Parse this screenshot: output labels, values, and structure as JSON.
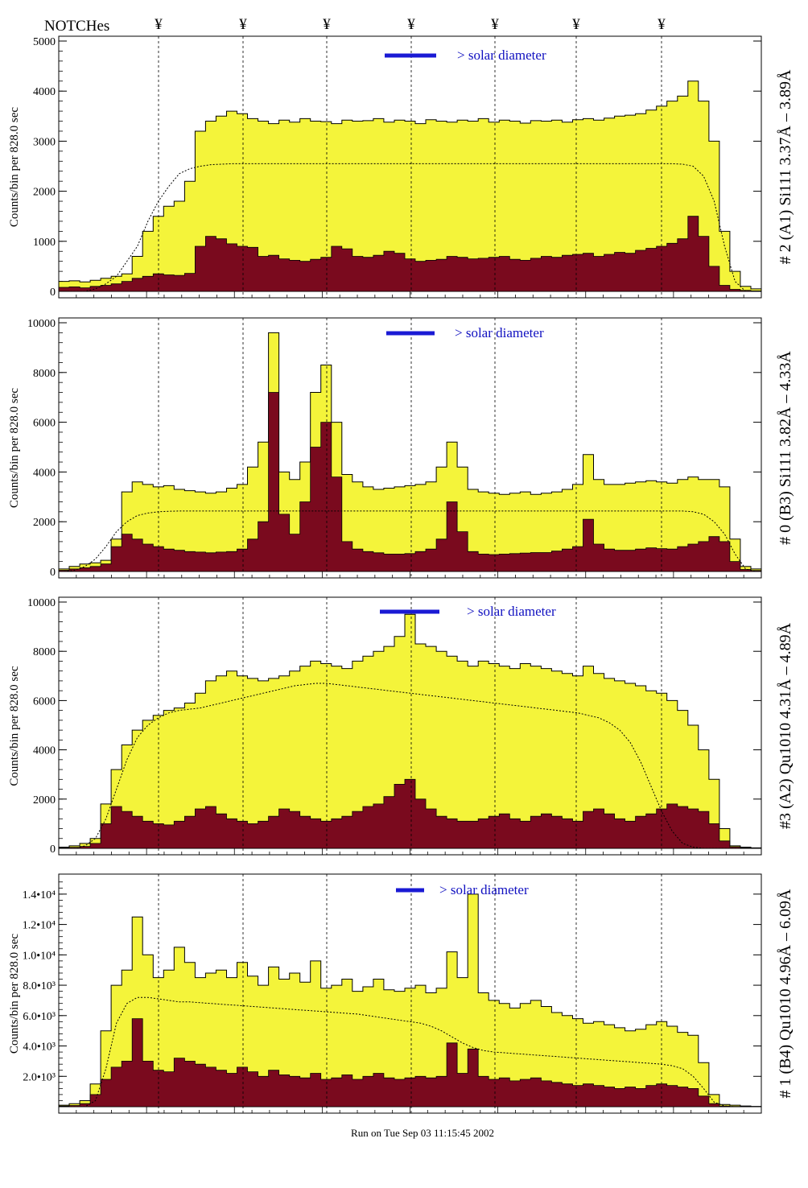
{
  "header": {
    "notches_label": "NOTCHes",
    "notch_marker": "¥"
  },
  "footer": {
    "run_text": "Run on Tue Sep 03 11:15:45 2002"
  },
  "colors": {
    "upper_fill": "#f4f43a",
    "lower_fill": "#7a0a1e",
    "legend": "#1a1ad4",
    "outline": "#000000"
  },
  "chart_data": [
    {
      "type": "area",
      "title": "# 2 (A1) Si111  3.37Å – 3.89Å",
      "ylabel": "Counts/bin per    828.0 sec",
      "legend": "> solar diameter",
      "ylim": [
        0,
        5000
      ],
      "yticks": [
        "0",
        "1000",
        "2000",
        "3000",
        "4000",
        "5000"
      ],
      "upper": [
        200,
        210,
        190,
        220,
        260,
        300,
        350,
        700,
        1200,
        1500,
        1700,
        1800,
        2200,
        3200,
        3400,
        3500,
        3600,
        3550,
        3450,
        3400,
        3350,
        3420,
        3380,
        3450,
        3400,
        3390,
        3350,
        3420,
        3400,
        3410,
        3450,
        3380,
        3420,
        3400,
        3350,
        3430,
        3400,
        3380,
        3420,
        3400,
        3450,
        3380,
        3420,
        3400,
        3360,
        3410,
        3400,
        3420,
        3380,
        3430,
        3450,
        3420,
        3460,
        3500,
        3520,
        3550,
        3620,
        3700,
        3800,
        3900,
        4200,
        3800,
        3000,
        1200,
        400,
        100,
        50
      ],
      "lower": [
        80,
        90,
        70,
        100,
        120,
        150,
        200,
        260,
        300,
        350,
        330,
        320,
        360,
        900,
        1100,
        1050,
        950,
        900,
        880,
        700,
        720,
        650,
        620,
        600,
        640,
        680,
        900,
        850,
        700,
        680,
        720,
        800,
        760,
        650,
        600,
        620,
        640,
        700,
        680,
        650,
        660,
        680,
        700,
        640,
        620,
        660,
        700,
        680,
        720,
        740,
        760,
        700,
        740,
        780,
        760,
        820,
        860,
        900,
        960,
        1050,
        1500,
        1100,
        500,
        120,
        40,
        20,
        10
      ],
      "reference": [
        0,
        0,
        0,
        50,
        150,
        300,
        600,
        900,
        1400,
        1800,
        2100,
        2350,
        2450,
        2500,
        2530,
        2540,
        2550,
        2550,
        2550,
        2550,
        2550,
        2550,
        2550,
        2550,
        2550,
        2550,
        2550,
        2550,
        2550,
        2550,
        2550,
        2550,
        2550,
        2550,
        2550,
        2550,
        2550,
        2550,
        2550,
        2550,
        2550,
        2550,
        2550,
        2550,
        2550,
        2550,
        2550,
        2550,
        2550,
        2550,
        2550,
        2550,
        2550,
        2550,
        2550,
        2550,
        2550,
        2550,
        2550,
        2540,
        2500,
        2300,
        1800,
        900,
        200,
        0,
        0
      ]
    },
    {
      "type": "area",
      "title": "# 0 (B3) Si111  3.82Å – 4.33Å",
      "ylabel": "Counts/bin per    828.0 sec",
      "legend": "> solar diameter",
      "ylim": [
        0,
        10000
      ],
      "yticks": [
        "0",
        "2000",
        "4000",
        "6000",
        "8000",
        "10000"
      ],
      "upper": [
        100,
        200,
        300,
        350,
        450,
        1300,
        3200,
        3600,
        3500,
        3400,
        3450,
        3300,
        3250,
        3200,
        3150,
        3200,
        3350,
        3500,
        4200,
        5200,
        9600,
        4000,
        3700,
        4400,
        7200,
        8300,
        6000,
        3900,
        3600,
        3400,
        3300,
        3350,
        3400,
        3450,
        3500,
        3600,
        4200,
        5200,
        4200,
        3300,
        3200,
        3150,
        3100,
        3150,
        3200,
        3100,
        3150,
        3200,
        3300,
        3500,
        4700,
        3700,
        3500,
        3500,
        3550,
        3600,
        3650,
        3600,
        3550,
        3700,
        3800,
        3700,
        3700,
        3400,
        1300,
        200,
        100
      ],
      "lower": [
        50,
        100,
        150,
        200,
        300,
        1000,
        1500,
        1300,
        1100,
        1000,
        900,
        850,
        800,
        780,
        750,
        780,
        800,
        900,
        1300,
        2000,
        7200,
        2300,
        1500,
        2800,
        5000,
        6000,
        3800,
        1200,
        900,
        800,
        750,
        700,
        700,
        720,
        800,
        900,
        1300,
        2800,
        1600,
        800,
        700,
        680,
        700,
        720,
        740,
        760,
        760,
        820,
        900,
        1000,
        2100,
        1100,
        900,
        850,
        850,
        900,
        950,
        920,
        900,
        1000,
        1100,
        1200,
        1400,
        1200,
        400,
        80,
        40
      ],
      "reference": [
        0,
        50,
        200,
        500,
        1000,
        1600,
        2000,
        2250,
        2350,
        2400,
        2420,
        2430,
        2430,
        2430,
        2430,
        2430,
        2430,
        2430,
        2430,
        2430,
        2430,
        2430,
        2430,
        2430,
        2430,
        2430,
        2430,
        2430,
        2430,
        2430,
        2430,
        2430,
        2430,
        2430,
        2430,
        2430,
        2430,
        2430,
        2430,
        2430,
        2430,
        2430,
        2430,
        2430,
        2430,
        2430,
        2430,
        2430,
        2430,
        2430,
        2430,
        2430,
        2430,
        2430,
        2430,
        2430,
        2430,
        2430,
        2430,
        2430,
        2400,
        2300,
        2000,
        1500,
        700,
        100,
        0
      ]
    },
    {
      "type": "area",
      "title": "#3 (A2) Qu1010  4.31Å – 4.89Å",
      "ylabel": "Counts/bin per    828.0 sec",
      "legend": "> solar diameter",
      "ylim": [
        0,
        10000
      ],
      "yticks": [
        "0",
        "2000",
        "4000",
        "6000",
        "8000",
        "10000"
      ],
      "upper": [
        50,
        100,
        200,
        400,
        1800,
        3200,
        4200,
        4800,
        5200,
        5400,
        5600,
        5700,
        5900,
        6300,
        6800,
        7000,
        7200,
        7000,
        6900,
        6800,
        6900,
        7000,
        7200,
        7400,
        7600,
        7500,
        7400,
        7300,
        7600,
        7800,
        8000,
        8200,
        8600,
        9500,
        8300,
        8200,
        8000,
        7800,
        7600,
        7400,
        7600,
        7500,
        7400,
        7300,
        7500,
        7400,
        7300,
        7200,
        7100,
        7000,
        7400,
        7100,
        6900,
        6800,
        6700,
        6600,
        6400,
        6300,
        6000,
        5600,
        5000,
        4000,
        2800,
        800,
        100,
        50,
        20
      ],
      "lower": [
        20,
        40,
        80,
        200,
        1000,
        1700,
        1500,
        1300,
        1100,
        1000,
        950,
        1100,
        1300,
        1600,
        1700,
        1400,
        1200,
        1100,
        1000,
        1100,
        1300,
        1600,
        1500,
        1300,
        1200,
        1100,
        1200,
        1300,
        1500,
        1700,
        1800,
        2100,
        2600,
        2800,
        2000,
        1600,
        1300,
        1200,
        1100,
        1100,
        1200,
        1300,
        1400,
        1200,
        1100,
        1300,
        1400,
        1300,
        1200,
        1100,
        1500,
        1600,
        1400,
        1200,
        1100,
        1300,
        1400,
        1600,
        1800,
        1700,
        1600,
        1500,
        1000,
        300,
        60,
        20,
        10
      ],
      "reference": [
        0,
        0,
        100,
        400,
        1200,
        2400,
        3600,
        4500,
        5000,
        5300,
        5500,
        5600,
        5650,
        5700,
        5800,
        5900,
        6000,
        6100,
        6200,
        6300,
        6400,
        6500,
        6600,
        6650,
        6700,
        6700,
        6650,
        6600,
        6550,
        6500,
        6450,
        6400,
        6350,
        6300,
        6250,
        6200,
        6150,
        6100,
        6050,
        6000,
        5950,
        5900,
        5850,
        5800,
        5750,
        5700,
        5650,
        5600,
        5550,
        5500,
        5400,
        5300,
        5100,
        4800,
        4300,
        3500,
        2500,
        1500,
        700,
        200,
        50,
        0,
        0,
        0,
        0,
        0,
        0
      ]
    },
    {
      "type": "area",
      "title": "# 1 (B4) Qu1010 4.96Å – 6.09Å",
      "ylabel": "Counts/bin per    828.0 sec",
      "legend": "> solar diameter",
      "ylim": [
        0,
        15000
      ],
      "yticks": [
        "2.0•10³",
        "4.0•10³",
        "6.0•10³",
        "8.0•10³",
        "1.0•10⁴",
        "1.2•10⁴",
        "1.4•10⁴"
      ],
      "upper": [
        100,
        200,
        400,
        1500,
        5000,
        8000,
        9000,
        12500,
        10000,
        8500,
        9000,
        10500,
        9500,
        8500,
        8800,
        9000,
        8500,
        9500,
        8600,
        8000,
        9200,
        8400,
        8800,
        8200,
        9600,
        7800,
        8000,
        8400,
        7600,
        7900,
        8400,
        7700,
        7600,
        7800,
        8000,
        7500,
        7800,
        10200,
        8500,
        14000,
        7500,
        7000,
        6800,
        6500,
        6800,
        7000,
        6600,
        6200,
        6000,
        5800,
        5500,
        5600,
        5400,
        5200,
        5000,
        5100,
        5400,
        5600,
        5300,
        4900,
        4700,
        2900,
        800,
        150,
        100,
        50,
        20
      ],
      "lower": [
        40,
        80,
        200,
        800,
        1800,
        2600,
        3000,
        5800,
        3000,
        2400,
        2300,
        3200,
        3000,
        2800,
        2600,
        2400,
        2200,
        2600,
        2300,
        2000,
        2400,
        2100,
        2000,
        1900,
        2200,
        1800,
        1900,
        2100,
        1800,
        2000,
        2200,
        1900,
        1800,
        1900,
        2000,
        1900,
        2000,
        4200,
        2200,
        3800,
        2000,
        1800,
        1900,
        1700,
        1800,
        1900,
        1700,
        1600,
        1500,
        1400,
        1500,
        1400,
        1300,
        1200,
        1300,
        1200,
        1400,
        1500,
        1400,
        1300,
        1200,
        700,
        200,
        50,
        20,
        10,
        5
      ],
      "reference": [
        0,
        0,
        0,
        400,
        2500,
        5500,
        6800,
        7200,
        7200,
        7100,
        7000,
        6900,
        6900,
        6850,
        6800,
        6750,
        6700,
        6650,
        6600,
        6550,
        6500,
        6450,
        6400,
        6350,
        6300,
        6250,
        6200,
        6150,
        6100,
        6000,
        5900,
        5800,
        5700,
        5600,
        5500,
        5300,
        5000,
        4600,
        4200,
        3900,
        3700,
        3600,
        3550,
        3500,
        3450,
        3400,
        3350,
        3300,
        3250,
        3200,
        3150,
        3100,
        3050,
        3000,
        2950,
        2900,
        2850,
        2800,
        2700,
        2500,
        2000,
        1200,
        300,
        50,
        0,
        0,
        0
      ]
    }
  ]
}
